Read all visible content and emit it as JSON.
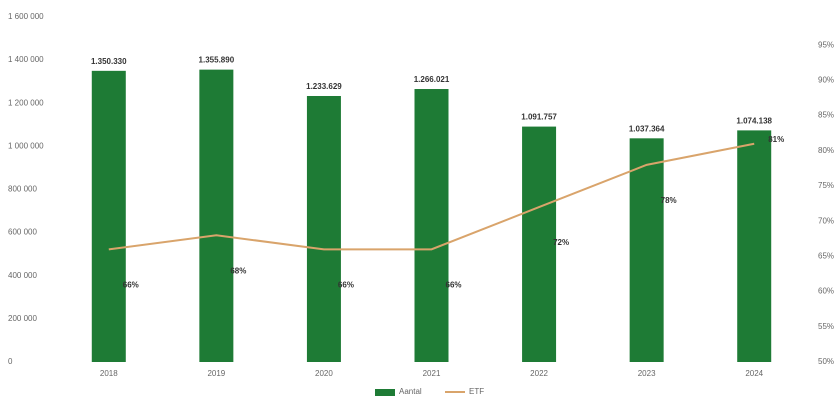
{
  "chart_data": {
    "type": "bar-line",
    "categories": [
      "2018",
      "2019",
      "2020",
      "2021",
      "2022",
      "2023",
      "2024"
    ],
    "series": [
      {
        "name": "Aantal",
        "type": "bar",
        "color": "#1e7b35",
        "values": [
          1350330,
          1355890,
          1233629,
          1266021,
          1091757,
          1037364,
          1074138
        ],
        "value_labels": [
          "1.350.330",
          "1.355.890",
          "1.233.629",
          "1.266.021",
          "1.091.757",
          "1.037.364",
          "1.074.138"
        ]
      },
      {
        "name": "ETF",
        "type": "line",
        "axis": "y2",
        "color": "#d9a46b",
        "values": [
          66,
          68,
          66,
          66,
          72,
          78,
          81
        ],
        "value_labels": [
          "66%",
          "68%",
          "66%",
          "66%",
          "72%",
          "78%",
          "81%"
        ]
      }
    ],
    "ylim": [
      0,
      1600000
    ],
    "yticks": [
      {
        "value": 0,
        "label": "0"
      },
      {
        "value": 200000,
        "label": "200 000"
      },
      {
        "value": 400000,
        "label": "400 000"
      },
      {
        "value": 600000,
        "label": "600 000"
      },
      {
        "value": 800000,
        "label": "800 000"
      },
      {
        "value": 1000000,
        "label": "1 000 000"
      },
      {
        "value": 1200000,
        "label": "1 200 000"
      },
      {
        "value": 1400000,
        "label": "1 400 000"
      },
      {
        "value": 1600000,
        "label": "1 600 000"
      }
    ],
    "y2lim": [
      50,
      99
    ],
    "y2ticks": [
      {
        "value": 50,
        "label": "50%"
      },
      {
        "value": 55,
        "label": "55%"
      },
      {
        "value": 60,
        "label": "60%"
      },
      {
        "value": 65,
        "label": "65%"
      },
      {
        "value": 70,
        "label": "70%"
      },
      {
        "value": 75,
        "label": "75%"
      },
      {
        "value": 80,
        "label": "80%"
      },
      {
        "value": 85,
        "label": "85%"
      },
      {
        "value": 90,
        "label": "90%"
      },
      {
        "value": 95,
        "label": "95%"
      }
    ]
  }
}
